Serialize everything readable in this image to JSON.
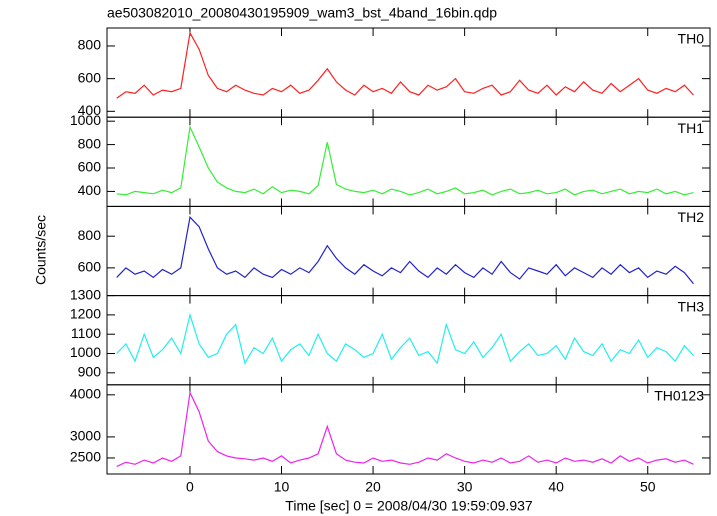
{
  "title": "ae503082010_20080430195909_wam3_bst_4band_16bin.qdp",
  "y_label": "Counts/sec",
  "x_label": "Time [sec] 0 = 2008/04/30 19:59:09.937",
  "chart_data": [
    {
      "type": "line",
      "label": "TH0",
      "color": "#ff2020",
      "xlim": [
        -9.06,
        56.8
      ],
      "xticks": [
        0,
        10,
        20,
        30,
        40,
        50
      ],
      "ylim": [
        364,
        910
      ],
      "yticks": [
        400,
        600,
        800
      ],
      "x": [
        -8,
        -7,
        -6,
        -5,
        -4,
        -3,
        -2,
        -1,
        0,
        1,
        2,
        3,
        4,
        5,
        6,
        7,
        8,
        9,
        10,
        11,
        12,
        13,
        14,
        15,
        16,
        17,
        18,
        19,
        20,
        21,
        22,
        23,
        24,
        25,
        26,
        27,
        28,
        29,
        30,
        31,
        32,
        33,
        34,
        35,
        36,
        37,
        38,
        39,
        40,
        41,
        42,
        43,
        44,
        45,
        46,
        47,
        48,
        49,
        50,
        51,
        52,
        53,
        54,
        55
      ],
      "values": [
        480,
        520,
        510,
        560,
        500,
        530,
        520,
        540,
        880,
        780,
        620,
        540,
        520,
        560,
        530,
        510,
        500,
        540,
        520,
        560,
        510,
        530,
        590,
        660,
        580,
        530,
        500,
        560,
        520,
        540,
        510,
        580,
        520,
        500,
        560,
        530,
        550,
        600,
        520,
        510,
        540,
        560,
        500,
        520,
        590,
        530,
        510,
        560,
        500,
        550,
        520,
        580,
        530,
        510,
        570,
        520,
        560,
        600,
        530,
        510,
        540,
        520,
        560,
        500
      ]
    },
    {
      "type": "line",
      "label": "TH1",
      "color": "#33ee33",
      "xlim": [
        -9.06,
        56.8
      ],
      "xticks": [
        0,
        10,
        20,
        30,
        40,
        50
      ],
      "ylim": [
        272,
        1034
      ],
      "yticks": [
        400,
        600,
        800,
        1000
      ],
      "x": [
        -8,
        -7,
        -6,
        -5,
        -4,
        -3,
        -2,
        -1,
        0,
        1,
        2,
        3,
        4,
        5,
        6,
        7,
        8,
        9,
        10,
        11,
        12,
        13,
        14,
        15,
        16,
        17,
        18,
        19,
        20,
        21,
        22,
        23,
        24,
        25,
        26,
        27,
        28,
        29,
        30,
        31,
        32,
        33,
        34,
        35,
        36,
        37,
        38,
        39,
        40,
        41,
        42,
        43,
        44,
        45,
        46,
        47,
        48,
        49,
        50,
        51,
        52,
        53,
        54,
        55
      ],
      "values": [
        380,
        370,
        400,
        390,
        380,
        410,
        390,
        430,
        950,
        780,
        600,
        480,
        430,
        400,
        390,
        420,
        380,
        440,
        390,
        410,
        400,
        380,
        450,
        820,
        460,
        420,
        400,
        390,
        410,
        380,
        420,
        400,
        370,
        390,
        420,
        380,
        400,
        430,
        380,
        390,
        410,
        370,
        400,
        420,
        380,
        390,
        410,
        380,
        390,
        420,
        370,
        400,
        410,
        380,
        400,
        420,
        380,
        400,
        390,
        420,
        380,
        400,
        370,
        390
      ]
    },
    {
      "type": "line",
      "label": "TH2",
      "color": "#2222cc",
      "xlim": [
        -9.06,
        56.8
      ],
      "xticks": [
        0,
        10,
        20,
        30,
        40,
        50
      ],
      "ylim": [
        425,
        988
      ],
      "yticks": [
        600,
        800
      ],
      "x": [
        -8,
        -7,
        -6,
        -5,
        -4,
        -3,
        -2,
        -1,
        0,
        1,
        2,
        3,
        4,
        5,
        6,
        7,
        8,
        9,
        10,
        11,
        12,
        13,
        14,
        15,
        16,
        17,
        18,
        19,
        20,
        21,
        22,
        23,
        24,
        25,
        26,
        27,
        28,
        29,
        30,
        31,
        32,
        33,
        34,
        35,
        36,
        37,
        38,
        39,
        40,
        41,
        42,
        43,
        44,
        45,
        46,
        47,
        48,
        49,
        50,
        51,
        52,
        53,
        54,
        55
      ],
      "values": [
        540,
        600,
        560,
        580,
        540,
        590,
        560,
        600,
        920,
        860,
        720,
        600,
        560,
        580,
        540,
        600,
        560,
        540,
        590,
        560,
        600,
        570,
        640,
        740,
        660,
        600,
        560,
        620,
        580,
        550,
        600,
        570,
        640,
        580,
        540,
        600,
        560,
        620,
        570,
        540,
        600,
        560,
        640,
        570,
        530,
        600,
        580,
        560,
        620,
        550,
        600,
        570,
        540,
        600,
        560,
        620,
        570,
        600,
        540,
        580,
        560,
        610,
        570,
        500
      ]
    },
    {
      "type": "line",
      "label": "TH3",
      "color": "#22eeee",
      "xlim": [
        -9.06,
        56.8
      ],
      "xticks": [
        0,
        10,
        20,
        30,
        40,
        50
      ],
      "ylim": [
        838,
        1300
      ],
      "yticks": [
        900,
        1000,
        1100,
        1200,
        1300
      ],
      "x": [
        -8,
        -7,
        -6,
        -5,
        -4,
        -3,
        -2,
        -1,
        0,
        1,
        2,
        3,
        4,
        5,
        6,
        7,
        8,
        9,
        10,
        11,
        12,
        13,
        14,
        15,
        16,
        17,
        18,
        19,
        20,
        21,
        22,
        23,
        24,
        25,
        26,
        27,
        28,
        29,
        30,
        31,
        32,
        33,
        34,
        35,
        36,
        37,
        38,
        39,
        40,
        41,
        42,
        43,
        44,
        45,
        46,
        47,
        48,
        49,
        50,
        51,
        52,
        53,
        54,
        55
      ],
      "values": [
        1000,
        1050,
        960,
        1100,
        980,
        1020,
        1080,
        1000,
        1200,
        1050,
        980,
        1000,
        1100,
        1150,
        950,
        1030,
        1000,
        1080,
        960,
        1020,
        1050,
        990,
        1100,
        1000,
        960,
        1050,
        1020,
        980,
        1000,
        1100,
        970,
        1030,
        1080,
        990,
        1010,
        950,
        1150,
        1020,
        1000,
        1060,
        980,
        1030,
        1100,
        960,
        1010,
        1050,
        990,
        1000,
        1040,
        970,
        1080,
        1010,
        990,
        1050,
        960,
        1020,
        1000,
        1070,
        980,
        1030,
        1010,
        960,
        1040,
        990
      ]
    },
    {
      "type": "line",
      "label": "TH0123",
      "color": "#ee22ee",
      "xlim": [
        -9.06,
        56.8
      ],
      "xticks": [
        0,
        10,
        20,
        30,
        40,
        50
      ],
      "ylim": [
        2119,
        4238
      ],
      "yticks": [
        2500,
        3000,
        4000
      ],
      "x": [
        -8,
        -7,
        -6,
        -5,
        -4,
        -3,
        -2,
        -1,
        0,
        1,
        2,
        3,
        4,
        5,
        6,
        7,
        8,
        9,
        10,
        11,
        12,
        13,
        14,
        15,
        16,
        17,
        18,
        19,
        20,
        21,
        22,
        23,
        24,
        25,
        26,
        27,
        28,
        29,
        30,
        31,
        32,
        33,
        34,
        35,
        36,
        37,
        38,
        39,
        40,
        41,
        42,
        43,
        44,
        45,
        46,
        47,
        48,
        49,
        50,
        51,
        52,
        53,
        54,
        55
      ],
      "values": [
        2300,
        2400,
        2350,
        2450,
        2380,
        2500,
        2420,
        2550,
        4050,
        3600,
        2900,
        2650,
        2550,
        2500,
        2480,
        2450,
        2500,
        2420,
        2550,
        2380,
        2450,
        2500,
        2600,
        3250,
        2600,
        2450,
        2400,
        2380,
        2500,
        2420,
        2450,
        2380,
        2350,
        2400,
        2500,
        2450,
        2600,
        2500,
        2420,
        2380,
        2450,
        2400,
        2500,
        2380,
        2420,
        2550,
        2400,
        2450,
        2380,
        2500,
        2420,
        2450,
        2400,
        2480,
        2380,
        2550,
        2420,
        2500,
        2380,
        2450,
        2480,
        2400,
        2450,
        2350
      ]
    }
  ]
}
